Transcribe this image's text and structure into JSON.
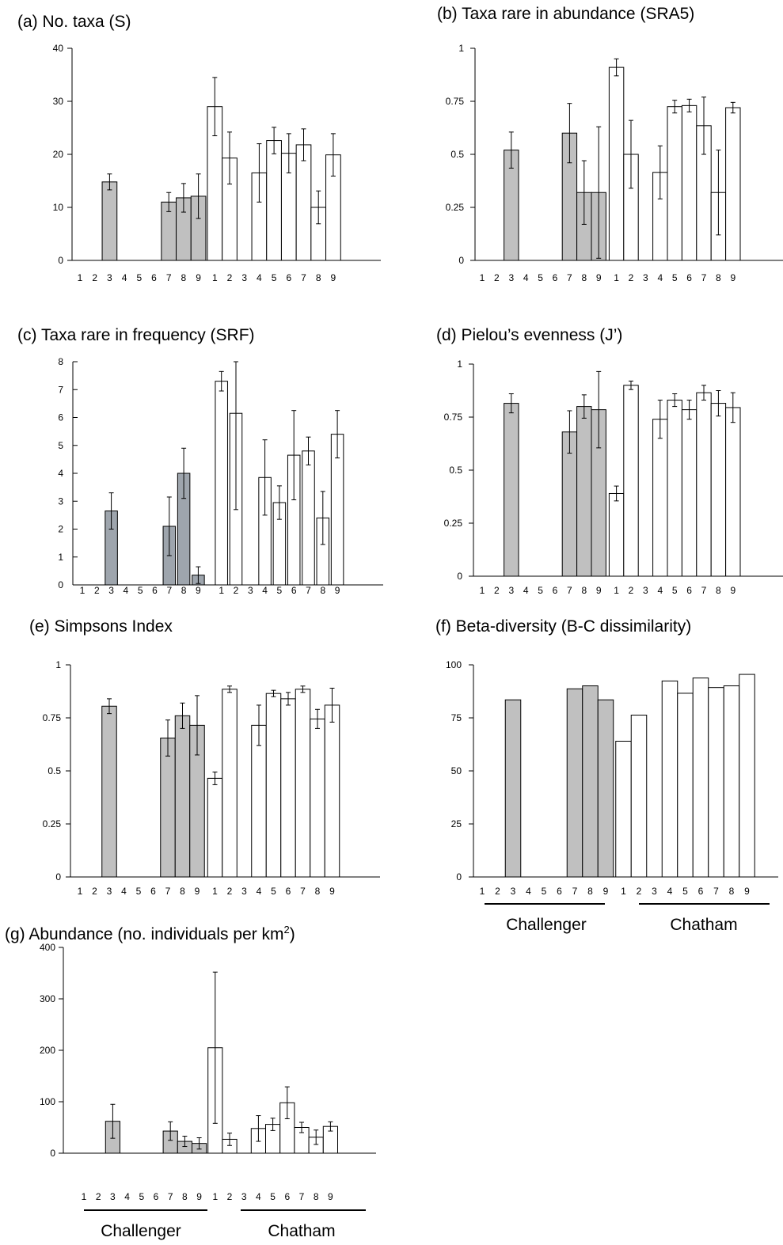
{
  "colors": {
    "challenger": "#c0c0c0",
    "challenger_dark": "#9ea5ad",
    "chatham": "#ffffff",
    "stroke": "#000000"
  },
  "chart_data": [
    {
      "type": "bar",
      "title": "(a) No. taxa (S)",
      "ylim": [
        0,
        40
      ],
      "yticks": [
        "0",
        "10",
        "20",
        "30",
        "40"
      ],
      "categories": [
        "1",
        "2",
        "3",
        "4",
        "5",
        "6",
        "7",
        "8",
        "9"
      ],
      "series": [
        {
          "name": "Challenger",
          "values": [
            null,
            null,
            14.8,
            null,
            null,
            null,
            11,
            11.8,
            12.1
          ],
          "err": [
            null,
            null,
            1.5,
            null,
            null,
            null,
            1.8,
            2.7,
            4.2
          ]
        },
        {
          "name": "Chatham",
          "values": [
            29,
            19.3,
            null,
            16.5,
            22.6,
            20.2,
            21.8,
            10,
            19.9
          ],
          "err": [
            5.5,
            4.9,
            null,
            5.5,
            2.5,
            3.7,
            3,
            3.1,
            4
          ]
        }
      ]
    },
    {
      "type": "bar",
      "title": "(b) Taxa rare in abundance (SRA5)",
      "ylim": [
        0,
        1
      ],
      "yticks": [
        "0",
        "0.25",
        "0.5",
        "0.75",
        "1"
      ],
      "categories": [
        "1",
        "2",
        "3",
        "4",
        "5",
        "6",
        "7",
        "8",
        "9"
      ],
      "series": [
        {
          "name": "Challenger",
          "values": [
            null,
            null,
            0.52,
            null,
            null,
            null,
            0.6,
            0.32,
            0.32
          ],
          "err": [
            null,
            null,
            0.085,
            null,
            null,
            null,
            0.14,
            0.15,
            0.31
          ]
        },
        {
          "name": "Chatham",
          "values": [
            0.91,
            0.5,
            null,
            0.415,
            0.725,
            0.73,
            0.635,
            0.32,
            0.72
          ],
          "err": [
            0.04,
            0.16,
            null,
            0.125,
            0.03,
            0.03,
            0.135,
            0.2,
            0.025
          ]
        }
      ]
    },
    {
      "type": "bar",
      "title": "(c) Taxa rare in frequency (SRF)",
      "ylim": [
        0,
        8
      ],
      "yticks": [
        "0",
        "1",
        "2",
        "3",
        "4",
        "5",
        "6",
        "7",
        "8"
      ],
      "categories": [
        "1",
        "2",
        "3",
        "4",
        "5",
        "6",
        "7",
        "8",
        "9"
      ],
      "series": [
        {
          "name": "Challenger",
          "values": [
            null,
            null,
            2.65,
            null,
            null,
            null,
            2.1,
            4,
            0.35
          ],
          "err": [
            null,
            null,
            0.65,
            null,
            null,
            null,
            1.05,
            0.9,
            0.3
          ]
        },
        {
          "name": "Chatham",
          "values": [
            7.3,
            6.15,
            null,
            3.85,
            2.95,
            4.65,
            4.8,
            2.4,
            5.4
          ],
          "err": [
            0.35,
            3.45,
            null,
            1.35,
            0.6,
            1.6,
            0.5,
            0.95,
            0.85
          ]
        }
      ]
    },
    {
      "type": "bar",
      "title": "(d) Pielou’s evenness (J’)",
      "ylim": [
        0,
        1
      ],
      "yticks": [
        "0",
        "0.25",
        "0.5",
        "0.75",
        "1"
      ],
      "categories": [
        "1",
        "2",
        "3",
        "4",
        "5",
        "6",
        "7",
        "8",
        "9"
      ],
      "series": [
        {
          "name": "Challenger",
          "values": [
            null,
            null,
            0.815,
            null,
            null,
            null,
            0.68,
            0.8,
            0.785
          ],
          "err": [
            null,
            null,
            0.045,
            null,
            null,
            null,
            0.1,
            0.055,
            0.18
          ]
        },
        {
          "name": "Chatham",
          "values": [
            0.39,
            0.9,
            null,
            0.74,
            0.83,
            0.785,
            0.865,
            0.815,
            0.795
          ],
          "err": [
            0.035,
            0.02,
            null,
            0.09,
            0.03,
            0.045,
            0.035,
            0.06,
            0.07
          ]
        }
      ]
    },
    {
      "type": "bar",
      "title": "(e) Simpsons Index",
      "ylim": [
        0,
        1
      ],
      "yticks": [
        "0",
        "0.25",
        "0.5",
        "0.75",
        "1"
      ],
      "categories": [
        "1",
        "2",
        "3",
        "4",
        "5",
        "6",
        "7",
        "8",
        "9"
      ],
      "series": [
        {
          "name": "Challenger",
          "values": [
            null,
            null,
            0.805,
            null,
            null,
            null,
            0.655,
            0.76,
            0.715
          ],
          "err": [
            null,
            null,
            0.035,
            null,
            null,
            null,
            0.085,
            0.06,
            0.14
          ]
        },
        {
          "name": "Chatham",
          "values": [
            0.465,
            0.885,
            null,
            0.715,
            0.865,
            0.84,
            0.885,
            0.745,
            0.81
          ],
          "err": [
            0.03,
            0.015,
            null,
            0.095,
            0.015,
            0.03,
            0.015,
            0.045,
            0.08
          ]
        }
      ]
    },
    {
      "type": "bar",
      "title": "(f) Beta-diversity (B-C dissimilarity)",
      "ylim": [
        0,
        100
      ],
      "yticks": [
        "0",
        "25",
        "50",
        "75",
        "100"
      ],
      "categories": [
        "1",
        "2",
        "3",
        "4",
        "5",
        "6",
        "7",
        "8",
        "9"
      ],
      "series": [
        {
          "name": "Challenger",
          "values": [
            null,
            null,
            83.5,
            null,
            null,
            null,
            88.7,
            90.1,
            83.5
          ],
          "err": [
            null,
            null,
            null,
            null,
            null,
            null,
            null,
            null,
            null
          ]
        },
        {
          "name": "Chatham",
          "values": [
            64,
            76.3,
            null,
            92.4,
            86.6,
            93.8,
            89.3,
            90.1,
            95.5
          ],
          "err": [
            null,
            null,
            null,
            null,
            null,
            null,
            null,
            null,
            null
          ]
        }
      ],
      "groups": [
        "Challenger",
        "Chatham"
      ]
    },
    {
      "type": "bar",
      "title": "(g) Abundance (no. individuals per km",
      "title_sup": "2",
      "title_end": ")",
      "ylim": [
        0,
        400
      ],
      "yticks": [
        "0",
        "100",
        "200",
        "300",
        "400"
      ],
      "categories": [
        "1",
        "2",
        "3",
        "4",
        "5",
        "6",
        "7",
        "8",
        "9"
      ],
      "series": [
        {
          "name": "Challenger",
          "values": [
            null,
            null,
            62,
            null,
            null,
            null,
            43,
            23,
            19
          ],
          "err": [
            null,
            null,
            33,
            null,
            null,
            null,
            18,
            10,
            11
          ]
        },
        {
          "name": "Chatham",
          "values": [
            205,
            27,
            null,
            48,
            56,
            98,
            50,
            31,
            52
          ],
          "err": [
            147,
            12,
            null,
            25,
            12,
            31,
            10,
            14,
            9
          ]
        }
      ],
      "groups": [
        "Challenger",
        "Chatham"
      ]
    }
  ]
}
